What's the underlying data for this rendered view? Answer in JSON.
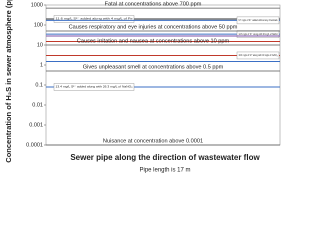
{
  "chart_data": {
    "type": "hline",
    "title": "Sewer pipe along the direction of wastewater flow",
    "subtitle": "Pipe length is 17 m",
    "y_label": "Concentration of H₂S in sewer atmosphere (ppm)",
    "log_y": true,
    "ylim": [
      0.0001,
      1000
    ],
    "yticks": [
      0.0001,
      0.001,
      0.01,
      0.1,
      1,
      10,
      100,
      1000
    ],
    "thresholds": [
      {
        "label": "Fatal at concentrations above 700 ppm",
        "value": 700,
        "color": "#555555"
      },
      {
        "label": "Causes respiratory and eye injuries at concentrations above 50 ppm",
        "value": 50,
        "color": "#555555"
      },
      {
        "label": "Causes irritation and nausea at concentrations above 10 ppm",
        "value": 10,
        "color": "#555555"
      },
      {
        "label": "Gives unpleasant smell at concentrations above 0.5 ppm",
        "value": 0.5,
        "color": "#555555"
      },
      {
        "label": "Nuisance at concentration above 0.0001",
        "value": 0.0001,
        "color": "#555555"
      }
    ],
    "measurements": [
      {
        "label": "11.6 mg/L S²⁻ added along with 4 mg/L of Fe",
        "value": 200,
        "color": "#333333",
        "side": "left"
      },
      {
        "label": "9.7 mg/L of S²⁻ added without any chemicals",
        "value": 170,
        "color": "#3b6fc4",
        "side": "right"
      },
      {
        "label": "12.6 mg/L of S²⁻ along with 40 mg/L of NaOH",
        "value": 35,
        "color": "#3b6fc4",
        "side": "right"
      },
      {
        "value": 28,
        "color": "#7b4fa8"
      },
      {
        "value": 15,
        "color": "#c0392b"
      },
      {
        "label": "16.3 mg/L of S²⁻ along with 40 mg/L of FeSO₄",
        "value": 3,
        "color": "#c0392b",
        "side": "right"
      },
      {
        "value": 1.5,
        "color": "#3b6fc4"
      },
      {
        "label": "13.4 mg/L S²⁻ added along with 26.3 mg/L of NaNO₃",
        "value": 0.08,
        "color": "#3b6fc4",
        "side": "left"
      }
    ]
  }
}
